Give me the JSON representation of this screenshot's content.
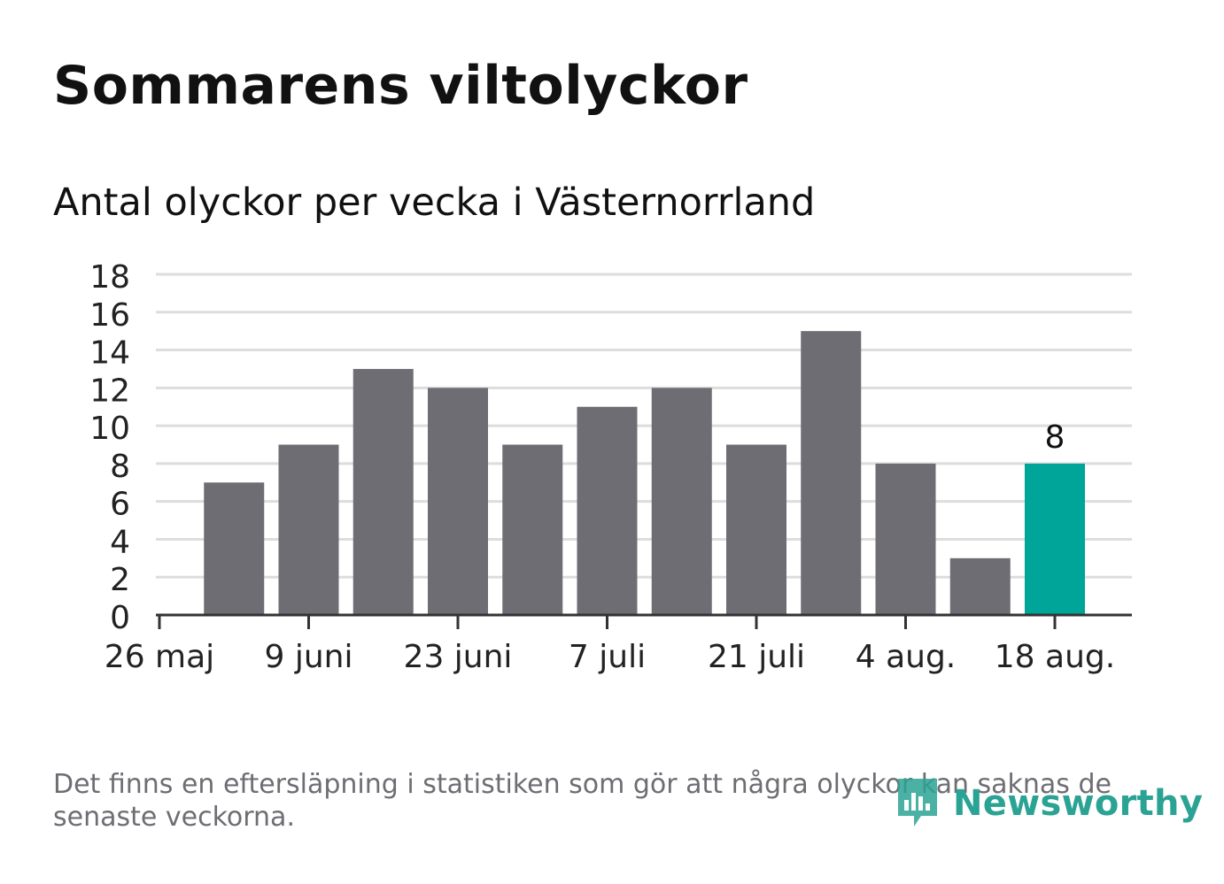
{
  "header": {
    "title": "Sommarens viltolyckor",
    "subtitle": "Antal olyckor per vecka i Västernorrland"
  },
  "footer": {
    "note": "Det finns en eftersläpning i statistiken som gör att några olyckor kan saknas de senaste veckorna.",
    "brand": "Newsworthy"
  },
  "colors": {
    "bar": "#6e6d73",
    "highlight": "#00a599",
    "grid": "#dddddd",
    "axis": "#333333",
    "brand": "#2ba394"
  },
  "chart_data": {
    "type": "bar",
    "ylim": [
      0,
      18
    ],
    "yticks": [
      0,
      2,
      4,
      6,
      8,
      10,
      12,
      14,
      16,
      18
    ],
    "xticks": [
      "26 maj",
      "9 juni",
      "23 juni",
      "7 juli",
      "21 juli",
      "4 aug.",
      "18 aug."
    ],
    "values": [
      7,
      9,
      13,
      12,
      9,
      11,
      12,
      9,
      15,
      8,
      3,
      8
    ],
    "highlight_index": 11,
    "data_labels": [
      {
        "index": 11,
        "text": "8"
      }
    ],
    "grid": true
  }
}
